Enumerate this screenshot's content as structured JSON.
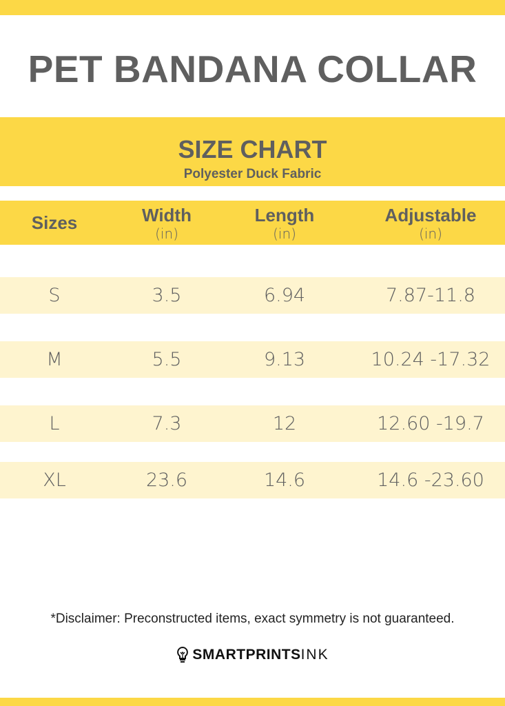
{
  "title": "PET BANDANA COLLAR",
  "chart": {
    "heading": "SIZE CHART",
    "subheading": "Polyester Duck Fabric"
  },
  "columns": [
    {
      "label": "Sizes",
      "unit": ""
    },
    {
      "label": "Width",
      "unit": "(in)"
    },
    {
      "label": "Length",
      "unit": "(in)"
    },
    {
      "label": "Adjustable",
      "unit": "(in)"
    }
  ],
  "rows": [
    [
      "S",
      "3.5",
      "6.94",
      "7.87-11.8"
    ],
    [
      "M",
      "5.5",
      "9.13",
      "10.24 -17.32"
    ],
    [
      "L",
      "7.3",
      "12",
      "12.60 -19.7"
    ],
    [
      "XL",
      "23.6",
      "14.6",
      "14.6 -23.60"
    ]
  ],
  "disclaimer": "*Disclaimer: Preconstructed items, exact symmetry is not guaranteed.",
  "logo": {
    "bold": "SMARTPRINTS",
    "light": "INK",
    "icon": "lightbulb-icon"
  },
  "colors": {
    "accent": "#fcd846",
    "row": "#fef4cf",
    "text": "#5f5f5f"
  }
}
